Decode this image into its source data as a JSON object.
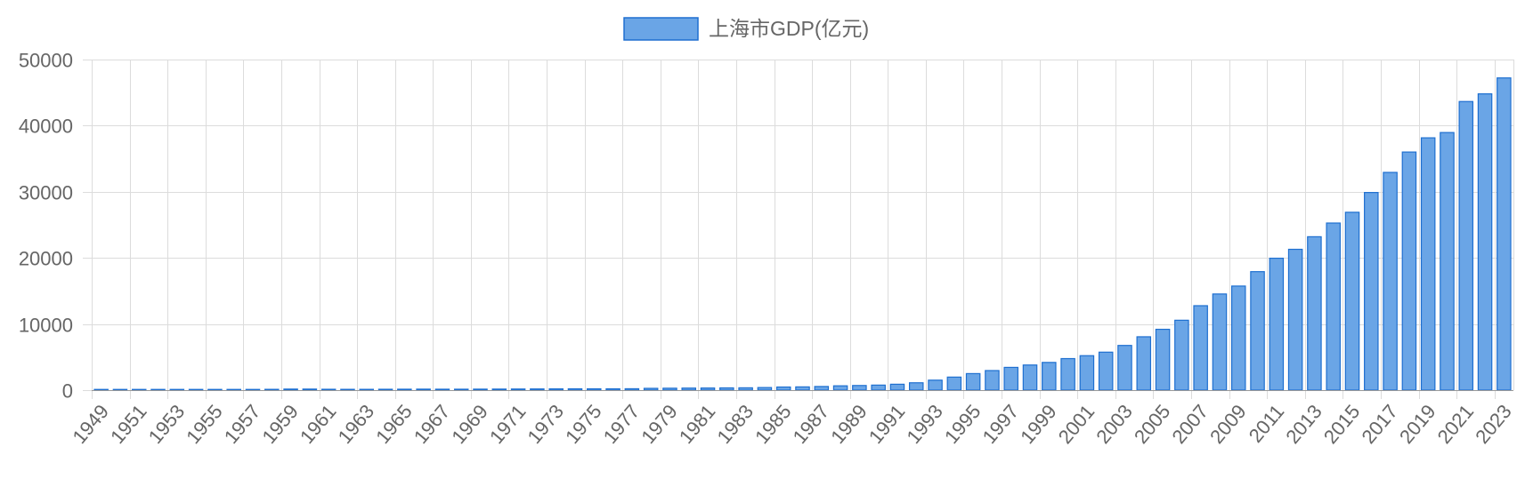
{
  "chart_data": {
    "type": "bar",
    "title": "",
    "xlabel": "",
    "ylabel": "",
    "ylim": [
      0,
      50000
    ],
    "yticks": [
      0,
      10000,
      20000,
      30000,
      40000,
      50000
    ],
    "grid": true,
    "legend_position": "top-center",
    "colors": {
      "bar_fill": "#6aa5e6",
      "bar_stroke": "#1e6fd0",
      "grid": "#dcdcdc",
      "axis": "#999999",
      "text": "#666666"
    },
    "categories": [
      "1949",
      "1950",
      "1951",
      "1952",
      "1953",
      "1954",
      "1955",
      "1956",
      "1957",
      "1958",
      "1959",
      "1960",
      "1961",
      "1962",
      "1963",
      "1964",
      "1965",
      "1966",
      "1967",
      "1968",
      "1969",
      "1970",
      "1971",
      "1972",
      "1973",
      "1974",
      "1975",
      "1976",
      "1977",
      "1978",
      "1979",
      "1980",
      "1981",
      "1982",
      "1983",
      "1984",
      "1985",
      "1986",
      "1987",
      "1988",
      "1989",
      "1990",
      "1991",
      "1992",
      "1993",
      "1994",
      "1995",
      "1996",
      "1997",
      "1998",
      "1999",
      "2000",
      "2001",
      "2002",
      "2003",
      "2004",
      "2005",
      "2006",
      "2007",
      "2008",
      "2009",
      "2010",
      "2011",
      "2012",
      "2013",
      "2014",
      "2015",
      "2016",
      "2017",
      "2018",
      "2019",
      "2020",
      "2021",
      "2022",
      "2023"
    ],
    "series": [
      {
        "name": "上海市GDP(亿元)",
        "values": [
          20,
          25,
          30,
          37,
          50,
          55,
          59,
          66,
          80,
          120,
          160,
          160,
          130,
          120,
          120,
          130,
          140,
          150,
          140,
          140,
          150,
          160,
          170,
          180,
          190,
          200,
          200,
          200,
          210,
          270,
          290,
          310,
          320,
          340,
          350,
          390,
          470,
          490,
          550,
          650,
          700,
          760,
          890,
          1110,
          1510,
          1970,
          2500,
          2960,
          3440,
          3800,
          4190,
          4770,
          5210,
          5740,
          6760,
          8070,
          9200,
          10570,
          12770,
          14540,
          15740,
          17920,
          19950,
          21300,
          23200,
          25270,
          26900,
          29890,
          32930,
          36010,
          38160,
          38960,
          43650,
          44810,
          47220
        ]
      }
    ]
  }
}
